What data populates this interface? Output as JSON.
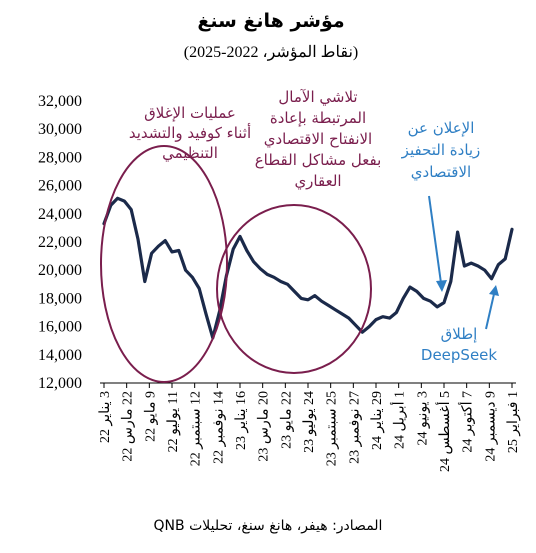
{
  "chart_data": {
    "type": "line",
    "title": "مؤشر هانغ سنغ",
    "subtitle": "(نقاط المؤشر، 2022-2025)",
    "source": "المصادر: هيفر، هانغ سنغ، تحليلات QNB",
    "ylim": [
      12000,
      32000
    ],
    "yticks": [
      "12,000",
      "14,000",
      "16,000",
      "18,000",
      "20,000",
      "22,000",
      "24,000",
      "26,000",
      "28,000",
      "30,000",
      "32,000"
    ],
    "xticks": [
      "3 يناير 22",
      "22 مارس 22",
      "9 مايو 22",
      "11 يوليو 22",
      "12 سبتمبر 22",
      "14 نوفمبر 22",
      "16 يناير 23",
      "20 مارس 23",
      "22 مايو 23",
      "24 يوليو 23",
      "25 سبتمبر 23",
      "27 نوفمبر 23",
      "29 يناير 24",
      "1 أبريل 24",
      "3 يونيو 24",
      "5 أغسطس 24",
      "7 أكتوبر 24",
      "9 ديسمبر 24",
      "1 فبراير 25"
    ],
    "grid": false,
    "series": [
      {
        "color": "#1b2a4a",
        "x_index": [
          0,
          0.3,
          0.6,
          0.9,
          1.2,
          1.5,
          1.8,
          2.1,
          2.4,
          2.7,
          3.0,
          3.3,
          3.6,
          3.9,
          4.2,
          4.5,
          4.8,
          5.1,
          5.4,
          5.7,
          6.0,
          6.3,
          6.6,
          6.9,
          7.2,
          7.5,
          7.8,
          8.1,
          8.4,
          8.7,
          9.0,
          9.3,
          9.6,
          9.9,
          10.2,
          10.5,
          10.8,
          11.1,
          11.4,
          11.7,
          12.0,
          12.3,
          12.6,
          12.9,
          13.2,
          13.5,
          13.8,
          14.1,
          14.4,
          14.7,
          15.0,
          15.3,
          15.6,
          15.9,
          16.2,
          16.5,
          16.8,
          17.1,
          17.4,
          17.7,
          18.0
        ],
        "values": [
          23300,
          24600,
          25100,
          24900,
          24300,
          22200,
          19200,
          21200,
          21700,
          22100,
          21300,
          21400,
          20000,
          19500,
          18700,
          16900,
          15200,
          17100,
          19600,
          21500,
          22400,
          21400,
          20600,
          20100,
          19700,
          19500,
          19200,
          19000,
          18500,
          18000,
          17900,
          18200,
          17800,
          17500,
          17200,
          16900,
          16600,
          16100,
          15600,
          16000,
          16500,
          16700,
          16600,
          17000,
          18000,
          18800,
          18500,
          18000,
          17800,
          17400,
          17700,
          19200,
          22700,
          20300,
          20500,
          20300,
          20000,
          19400,
          20400,
          20800,
          22900
        ]
      }
    ],
    "annotations": [
      {
        "lines": [
          "عمليات الإغلاق",
          "أثناء كوفيد والتشديد",
          "التنظيمي"
        ],
        "color": "#7a1e4d"
      },
      {
        "lines": [
          "تلاشي الآمال",
          "المرتبطة بإعادة",
          "الانفتاح الاقتصادي",
          "بفعل مشاكل القطاع",
          "العقاري"
        ],
        "color": "#7a1e4d"
      },
      {
        "lines": [
          "الإعلان عن",
          "زيادة التحفيز",
          "الاقتصادي"
        ],
        "color": "#2f7fc4"
      },
      {
        "lines": [
          "إطلاق",
          "DeepSeek"
        ],
        "color": "#2f7fc4"
      }
    ]
  }
}
